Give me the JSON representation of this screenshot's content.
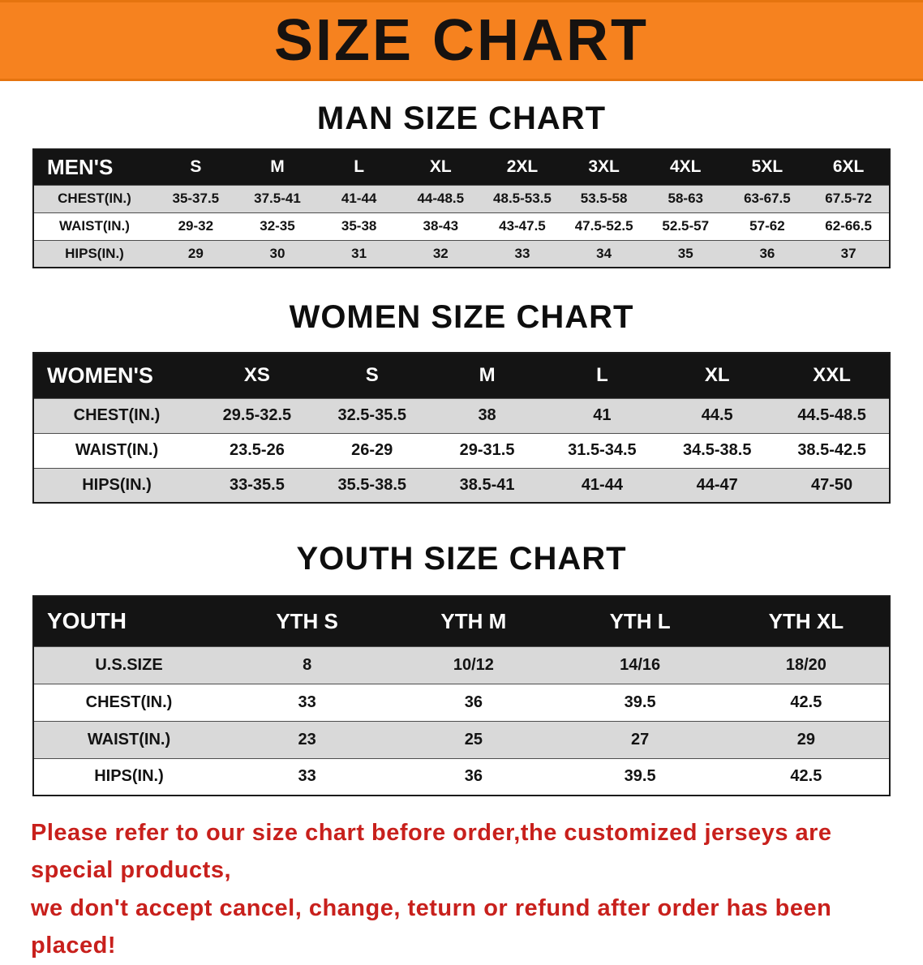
{
  "banner": {
    "title": "SIZE CHART",
    "bg_color": "#f6821f",
    "text_color": "#161210"
  },
  "chart_data": [
    {
      "type": "table",
      "title": "MAN SIZE CHART",
      "header": [
        "MEN'S",
        "S",
        "M",
        "L",
        "XL",
        "2XL",
        "3XL",
        "4XL",
        "5XL",
        "6XL"
      ],
      "rows": [
        [
          "CHEST(IN.)",
          "35-37.5",
          "37.5-41",
          "41-44",
          "44-48.5",
          "48.5-53.5",
          "53.5-58",
          "58-63",
          "63-67.5",
          "67.5-72"
        ],
        [
          "WAIST(IN.)",
          "29-32",
          "32-35",
          "35-38",
          "38-43",
          "43-47.5",
          "47.5-52.5",
          "52.5-57",
          "57-62",
          "62-66.5"
        ],
        [
          "HIPS(IN.)",
          "29",
          "30",
          "31",
          "32",
          "33",
          "34",
          "35",
          "36",
          "37"
        ]
      ]
    },
    {
      "type": "table",
      "title": "WOMEN SIZE CHART",
      "header": [
        "WOMEN'S",
        "XS",
        "S",
        "M",
        "L",
        "XL",
        "XXL"
      ],
      "rows": [
        [
          "CHEST(IN.)",
          "29.5-32.5",
          "32.5-35.5",
          "38",
          "41",
          "44.5",
          "44.5-48.5"
        ],
        [
          "WAIST(IN.)",
          "23.5-26",
          "26-29",
          "29-31.5",
          "31.5-34.5",
          "34.5-38.5",
          "38.5-42.5"
        ],
        [
          "HIPS(IN.)",
          "33-35.5",
          "35.5-38.5",
          "38.5-41",
          "41-44",
          "44-47",
          "47-50"
        ]
      ]
    },
    {
      "type": "table",
      "title": "YOUTH SIZE CHART",
      "header": [
        "YOUTH",
        "YTH S",
        "YTH M",
        "YTH L",
        "YTH XL"
      ],
      "rows": [
        [
          "U.S.SIZE",
          "8",
          "10/12",
          "14/16",
          "18/20"
        ],
        [
          "CHEST(IN.)",
          "33",
          "36",
          "39.5",
          "42.5"
        ],
        [
          "WAIST(IN.)",
          "23",
          "25",
          "27",
          "29"
        ],
        [
          "HIPS(IN.)",
          "33",
          "36",
          "39.5",
          "42.5"
        ]
      ]
    }
  ],
  "footer": {
    "line1": "Please refer to our size chart before order,the customized jerseys are special products,",
    "line2": "we don't accept cancel, change, teturn or refund after order has been placed!",
    "text_color": "#c8201c"
  }
}
